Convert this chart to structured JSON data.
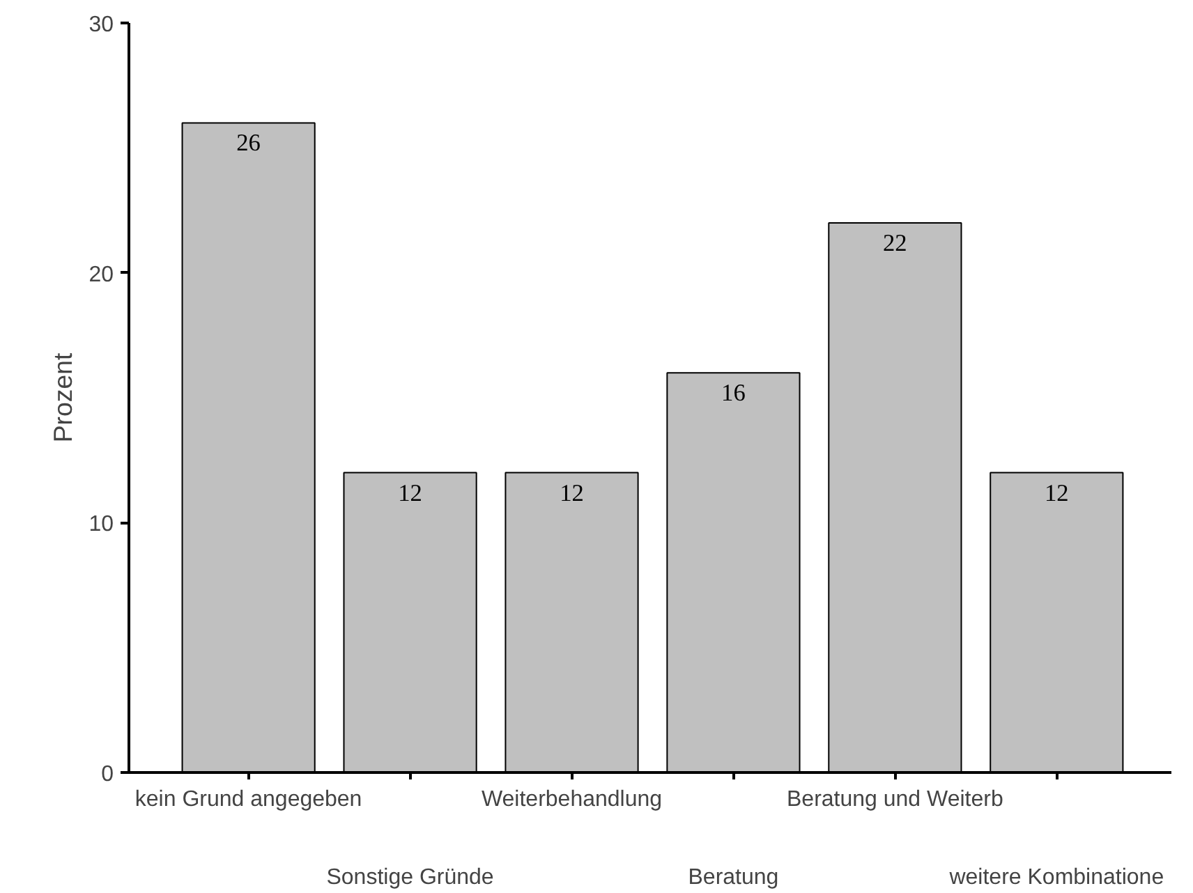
{
  "chart_data": {
    "type": "bar",
    "ylabel": "Prozent",
    "categories": [
      "kein Grund angegeben",
      "Sonstige Gründe",
      "Weiterbehandlung",
      "Beratung",
      "Beratung und Weiterb",
      "weitere Kombinatione"
    ],
    "values": [
      26,
      12,
      12,
      16,
      22,
      12
    ],
    "color": "#c0c0c0",
    "ylim": [
      0,
      30
    ],
    "yticks": [
      0,
      10,
      20,
      30
    ],
    "grid": false,
    "data_labels": true
  }
}
